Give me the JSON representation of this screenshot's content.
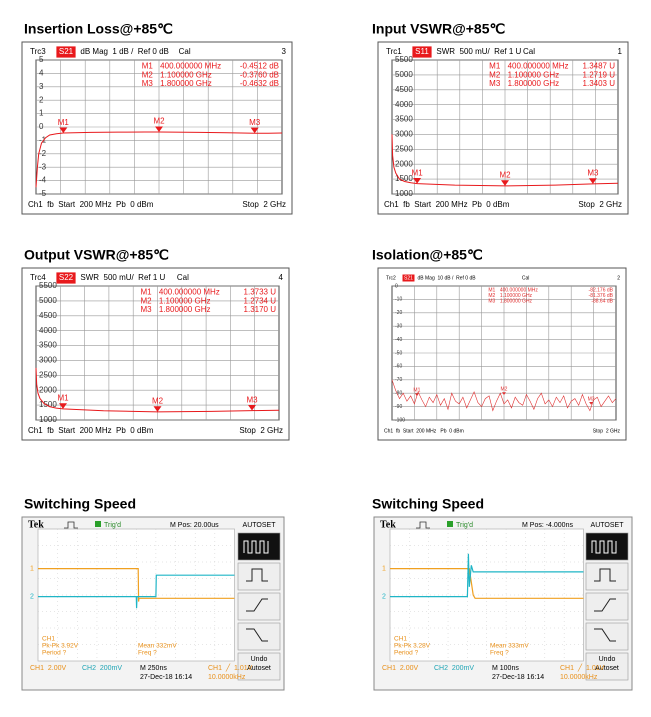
{
  "chart_data": [
    {
      "type": "line",
      "title": "Insertion Loss@+85℃",
      "trace": "Trc3",
      "param": "S21",
      "format": "dB Mag  1 dB /  Ref 0 dB",
      "cal": "Cal",
      "channel_no": "3",
      "xlim": [
        200,
        2000
      ],
      "ylim": [
        -5,
        5
      ],
      "yticks": [
        5,
        4,
        3,
        2,
        1,
        0,
        -1,
        -2,
        -3,
        -4,
        -5
      ],
      "x": [
        200,
        210,
        220,
        240,
        270,
        300,
        350,
        400,
        600,
        800,
        1000,
        1100,
        1200,
        1400,
        1600,
        1800,
        1900,
        2000
      ],
      "series": [
        {
          "color": "#e8191c",
          "values": [
            -4.5,
            -3,
            -2,
            -1.2,
            -0.8,
            -0.6,
            -0.5,
            -0.4512,
            -0.4,
            -0.38,
            -0.37,
            -0.376,
            -0.38,
            -0.4,
            -0.43,
            -0.4632,
            -0.46,
            -0.45
          ]
        }
      ],
      "markers": [
        {
          "name": "M1",
          "x": 400,
          "y": -0.4512,
          "x_label": "400.000000 MHz",
          "y_label": "-0.4512 dB"
        },
        {
          "name": "M2",
          "x": 1100,
          "y": -0.376,
          "x_label": "1.100000 GHz",
          "y_label": "-0.3760 dB"
        },
        {
          "name": "M3",
          "x": 1800,
          "y": -0.4632,
          "x_label": "1.800000 GHz",
          "y_label": "-0.4632 dB"
        }
      ],
      "footer_left": "Ch1  fb  Start  200 MHz  Pb  0 dBm",
      "footer_right": "Stop  2 GHz"
    },
    {
      "type": "line",
      "title": "Input VSWR@+85℃",
      "trace": "Trc1",
      "param": "S11",
      "format": "SWR  500 mU/  Ref 1 U",
      "cal": "Cal",
      "channel_no": "1",
      "xlim": [
        200,
        2000
      ],
      "ylim": [
        1000,
        5500
      ],
      "yticks": [
        5500,
        5000,
        4500,
        4000,
        3500,
        3000,
        2500,
        2000,
        1500,
        1000
      ],
      "x": [
        200,
        205,
        215,
        230,
        260,
        300,
        350,
        400,
        700,
        1100,
        1500,
        1800,
        2000
      ],
      "series": [
        {
          "color": "#e8191c",
          "values": [
            3000,
            2300,
            1900,
            1700,
            1500,
            1420,
            1380,
            1348.7,
            1300,
            1271.9,
            1300,
            1340.3,
            1360
          ]
        }
      ],
      "markers": [
        {
          "name": "M1",
          "x": 400,
          "y": 1348.7,
          "x_label": "400.000000 MHz",
          "y_label": "1.3487 U"
        },
        {
          "name": "M2",
          "x": 1100,
          "y": 1271.9,
          "x_label": "1.100000 GHz",
          "y_label": "1.2719 U"
        },
        {
          "name": "M3",
          "x": 1800,
          "y": 1340.3,
          "x_label": "1.800000 GHz",
          "y_label": "1.3403 U"
        }
      ],
      "footer_left": "Ch1  fb  Start  200 MHz  Pb  0 dBm",
      "footer_right": "Stop  2 GHz"
    },
    {
      "type": "line",
      "title": "Output VSWR@+85℃",
      "trace": "Trc4",
      "param": "S22",
      "format": "SWR  500 mU/  Ref 1 U",
      "cal": "Cal",
      "channel_no": "4",
      "xlim": [
        200,
        2000
      ],
      "ylim": [
        1000,
        5500
      ],
      "yticks": [
        5500,
        5000,
        4500,
        4000,
        3500,
        3000,
        2500,
        2000,
        1500,
        1000
      ],
      "x": [
        200,
        205,
        215,
        230,
        260,
        300,
        350,
        400,
        700,
        1100,
        1500,
        1800,
        2000
      ],
      "series": [
        {
          "color": "#e8191c",
          "values": [
            2750,
            2200,
            1900,
            1720,
            1550,
            1450,
            1400,
            1373.3,
            1310,
            1273.4,
            1290,
            1317,
            1330
          ]
        }
      ],
      "markers": [
        {
          "name": "M1",
          "x": 400,
          "y": 1373.3,
          "x_label": "400.000000 MHz",
          "y_label": "1.3733 U"
        },
        {
          "name": "M2",
          "x": 1100,
          "y": 1273.4,
          "x_label": "1.100000 GHz",
          "y_label": "1.2734 U"
        },
        {
          "name": "M3",
          "x": 1800,
          "y": 1317,
          "x_label": "1.800000 GHz",
          "y_label": "1.3170 U"
        }
      ],
      "footer_left": "Ch1  fb  Start  200 MHz  Pb  0 dBm",
      "footer_right": "Stop  2 GHz"
    },
    {
      "type": "line",
      "title": "Isolation@+85℃",
      "trace": "Trc2",
      "param": "S21",
      "format": "dB Mag  10 dB /  Ref 0 dB",
      "cal": "Cal",
      "channel_no": "2",
      "xlim": [
        200,
        2000
      ],
      "ylim": [
        -100,
        0
      ],
      "yticks": [
        0,
        -10,
        -20,
        -30,
        -40,
        -50,
        -60,
        -70,
        -80,
        -90,
        -100
      ],
      "x": [
        200,
        230,
        260,
        290,
        320,
        350,
        380,
        410,
        440,
        470,
        500,
        530,
        560,
        590,
        620,
        650,
        680,
        710,
        740,
        770,
        800,
        830,
        860,
        890,
        920,
        950,
        980,
        1010,
        1040,
        1070,
        1100,
        1130,
        1160,
        1190,
        1220,
        1250,
        1280,
        1310,
        1340,
        1370,
        1400,
        1430,
        1460,
        1490,
        1520,
        1550,
        1580,
        1610,
        1640,
        1670,
        1700,
        1730,
        1760,
        1790,
        1820,
        1850,
        1880,
        1910,
        1940,
        1970,
        2000
      ],
      "series": [
        {
          "color": "#e03030",
          "values": [
            -70,
            -78,
            -84,
            -80,
            -86,
            -82,
            -88,
            -79,
            -85,
            -90,
            -83,
            -87,
            -81,
            -89,
            -84,
            -92,
            -80,
            -86,
            -88,
            -83,
            -91,
            -85,
            -79,
            -87,
            -90,
            -84,
            -82,
            -93,
            -86,
            -80,
            -88,
            -85,
            -91,
            -83,
            -87,
            -89,
            -81,
            -86,
            -92,
            -84,
            -80,
            -88,
            -85,
            -90,
            -83,
            -87,
            -82,
            -91,
            -86,
            -84,
            -89,
            -81,
            -88,
            -93,
            -85,
            -83,
            -90,
            -86,
            -82,
            -87,
            -84
          ]
        }
      ],
      "markers": [
        {
          "name": "M1",
          "x": 400,
          "y": -82.176,
          "x_label": "400.000000 MHz",
          "y_label": "-82.176 dB"
        },
        {
          "name": "M2",
          "x": 1100,
          "y": -81.376,
          "x_label": "1.100000 GHz",
          "y_label": "-81.376 dB"
        },
        {
          "name": "M3",
          "x": 1800,
          "y": -88.64,
          "x_label": "1.800000 GHz",
          "y_label": "-88.64 dB"
        }
      ],
      "footer_left": "Ch1  fb  Start  200 MHz   Pb  0 dBm",
      "footer_right": "Stop  2 GHz"
    },
    {
      "type": "scope",
      "title": "Switching Speed",
      "brand": "Tek",
      "trigger": "Trig'd",
      "position": "M Pos: 20.00us",
      "menu_title": "AUTOSET",
      "menu_undo": [
        "Undo",
        "Autoset"
      ],
      "xlim": [
        0,
        10
      ],
      "ylim": [
        0,
        8
      ],
      "series": [
        {
          "name": "1",
          "color": "#f0a020",
          "x": [
            0,
            5.1,
            5.12,
            5.14,
            10
          ],
          "values": [
            5.6,
            5.6,
            3.6,
            3.8,
            3.8
          ]
        },
        {
          "name": "2",
          "color": "#1fb5c6",
          "x": [
            0,
            5.0,
            5.02,
            5.04,
            6.0,
            6.02,
            10
          ],
          "values": [
            3.9,
            3.9,
            3.2,
            3.9,
            3.9,
            5.2,
            5.2
          ]
        }
      ],
      "measure_1": [
        "CH1",
        "Pk-Pk 3.92V",
        "Period ?"
      ],
      "measure_2": [
        "Mean 332mV",
        "Freq ?"
      ],
      "ch1_scale": "CH1  2.00V",
      "ch2_scale": "CH2  200mV",
      "timebase": "M 250ns",
      "date": "27-Dec-18 16:14",
      "trigger_level": "CH1  ╱  1.01V",
      "frequency": "10.0000kHz"
    },
    {
      "type": "scope",
      "title": "Switching Speed",
      "brand": "Tek",
      "trigger": "Trig'd",
      "position": "M Pos: -4.000ns",
      "menu_title": "AUTOSET",
      "menu_undo": [
        "Undo",
        "Autoset"
      ],
      "xlim": [
        0,
        10
      ],
      "ylim": [
        0,
        8
      ],
      "series": [
        {
          "name": "1",
          "color": "#f0a020",
          "x": [
            0,
            4.1,
            4.3,
            4.4,
            10
          ],
          "values": [
            5.6,
            5.6,
            4.0,
            3.8,
            3.8
          ]
        },
        {
          "name": "2",
          "color": "#1fb5c6",
          "x": [
            0,
            4.0,
            4.05,
            4.1,
            4.2,
            4.3,
            10
          ],
          "values": [
            3.9,
            3.9,
            6.5,
            4.5,
            5.8,
            5.4,
            5.4
          ]
        }
      ],
      "measure_1": [
        "CH1",
        "Pk-Pk 3.28V",
        "Period ?"
      ],
      "measure_2": [
        "Mean 333mV",
        "Freq ?"
      ],
      "ch1_scale": "CH1  2.00V",
      "ch2_scale": "CH2  200mV",
      "timebase": "M 100ns",
      "date": "27-Dec-18 16:14",
      "trigger_level": "CH1  ╱  1.01V",
      "frequency": "10.0000kHz"
    }
  ]
}
